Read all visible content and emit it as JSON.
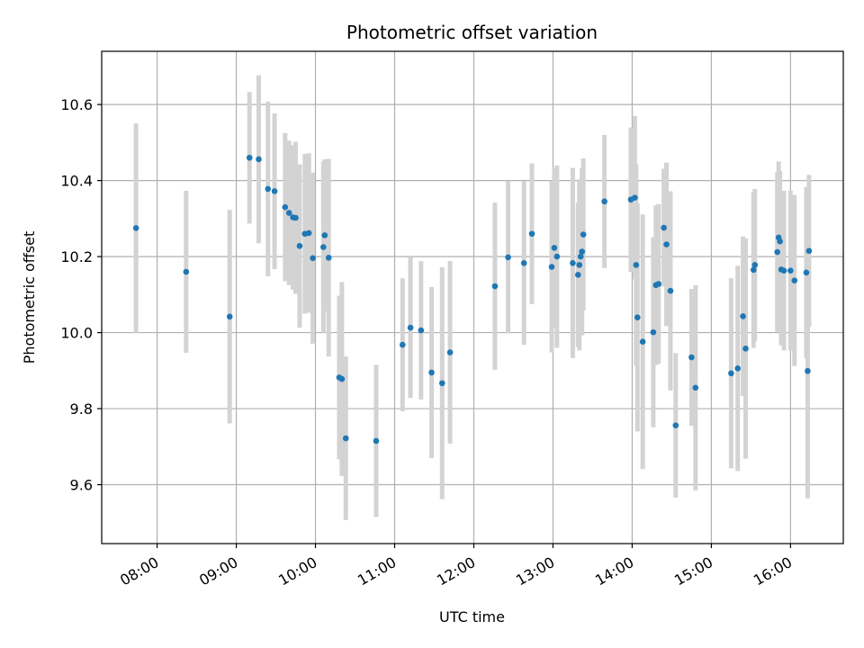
{
  "chart_data": {
    "type": "scatter",
    "title": "Photometric offset variation",
    "xlabel": "UTC time",
    "ylabel": "Photometric offset",
    "x_is_time": true,
    "xlim": [
      "07:18",
      "16:40"
    ],
    "ylim": [
      9.445,
      10.74
    ],
    "grid": true,
    "x_ticks": [
      "08:00",
      "09:00",
      "10:00",
      "11:00",
      "12:00",
      "13:00",
      "14:00",
      "15:00",
      "16:00"
    ],
    "y_ticks": [
      9.6,
      9.8,
      10.0,
      10.2,
      10.4,
      10.6
    ],
    "y_tick_labels": [
      "9.6",
      "9.8",
      "10.0",
      "10.2",
      "10.4",
      "10.6"
    ],
    "colors": {
      "points": "#1f77b4",
      "error_bars": "#d3d3d3",
      "grid": "#b0b0b0"
    },
    "series": [
      {
        "x": [
          "07:44",
          "08:22",
          "08:55",
          "09:10",
          "09:17",
          "09:24",
          "09:29",
          "09:37",
          "09:40",
          "09:43",
          "09:45",
          "09:48",
          "09:52",
          "09:55",
          "09:58",
          "10:06",
          "10:07",
          "10:10",
          "10:18",
          "10:20",
          "10:23",
          "10:46",
          "11:06",
          "11:12",
          "11:20",
          "11:28",
          "11:36",
          "11:42",
          "12:16",
          "12:26",
          "12:38",
          "12:44",
          "12:59",
          "13:01",
          "13:03",
          "13:15",
          "13:19",
          "13:20",
          "13:21",
          "13:22",
          "13:23",
          "13:39",
          "13:59",
          "14:02",
          "14:03",
          "14:04",
          "14:08",
          "14:16",
          "14:18",
          "14:20",
          "14:24",
          "14:26",
          "14:29",
          "14:33",
          "14:45",
          "14:48",
          "15:15",
          "15:20",
          "15:24",
          "15:26",
          "15:32",
          "15:33",
          "15:50",
          "15:51",
          "15:52",
          "15:53",
          "15:55",
          "16:00",
          "16:03",
          "16:12",
          "16:13",
          "16:14"
        ],
        "y": [
          10.275,
          10.16,
          10.042,
          10.46,
          10.456,
          10.378,
          10.372,
          10.33,
          10.315,
          10.303,
          10.302,
          10.228,
          10.26,
          10.262,
          10.196,
          10.225,
          10.256,
          10.197,
          9.882,
          9.878,
          9.722,
          9.715,
          9.968,
          10.013,
          10.006,
          9.895,
          9.867,
          9.948,
          10.122,
          10.198,
          10.183,
          10.26,
          10.173,
          10.223,
          10.2,
          10.183,
          10.152,
          10.178,
          10.2,
          10.213,
          10.258,
          10.345,
          10.35,
          10.355,
          10.178,
          10.04,
          9.976,
          10.001,
          10.125,
          10.128,
          10.276,
          10.232,
          10.11,
          9.756,
          9.935,
          9.855,
          9.893,
          9.906,
          10.043,
          9.958,
          10.165,
          10.178,
          10.212,
          10.25,
          10.24,
          10.166,
          10.163,
          10.163,
          10.137,
          10.158,
          9.899,
          10.215
        ],
        "yerr": [
          0.275,
          0.213,
          0.281,
          0.173,
          0.221,
          0.23,
          0.205,
          0.195,
          0.19,
          0.19,
          0.2,
          0.215,
          0.21,
          0.21,
          0.225,
          0.225,
          0.2,
          0.26,
          0.215,
          0.255,
          0.215,
          0.2,
          0.175,
          0.185,
          0.182,
          0.225,
          0.305,
          0.24,
          0.22,
          0.2,
          0.215,
          0.185,
          0.225,
          0.21,
          0.24,
          0.25,
          0.19,
          0.225,
          0.2,
          0.22,
          0.2,
          0.175,
          0.19,
          0.215,
          0.265,
          0.3,
          0.335,
          0.25,
          0.21,
          0.21,
          0.155,
          0.215,
          0.262,
          0.19,
          0.18,
          0.27,
          0.25,
          0.27,
          0.21,
          0.29,
          0.205,
          0.2,
          0.21,
          0.2,
          0.185,
          0.2,
          0.21,
          0.21,
          0.225,
          0.225,
          0.335,
          0.2
        ]
      }
    ]
  }
}
